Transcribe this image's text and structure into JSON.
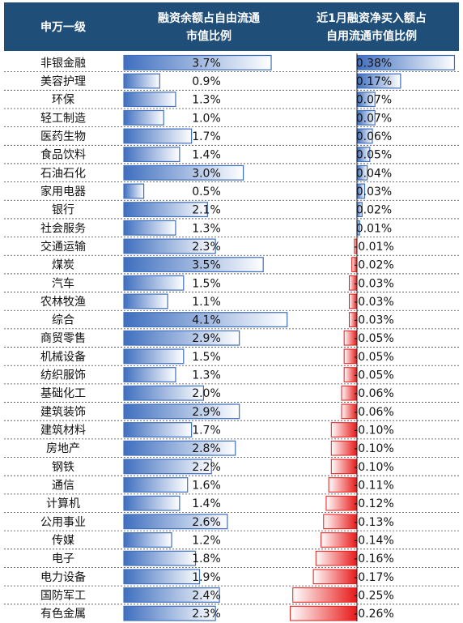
{
  "chart_data": {
    "type": "table",
    "columns": [
      "申万一级",
      "融资余额占自由流通\n市值比例",
      "近1月融资净买入额占\n自用流通市值比例"
    ],
    "ratio_unit": "%",
    "net_unit": "%",
    "rows": [
      {
        "industry": "非银金融",
        "ratio": 3.7,
        "net": 0.38,
        "ratio_label": "3.7%",
        "net_label": "0.38%"
      },
      {
        "industry": "美容护理",
        "ratio": 0.9,
        "net": 0.17,
        "ratio_label": "0.9%",
        "net_label": "0.17%"
      },
      {
        "industry": "环保",
        "ratio": 1.3,
        "net": 0.07,
        "ratio_label": "1.3%",
        "net_label": "0.07%"
      },
      {
        "industry": "轻工制造",
        "ratio": 1.0,
        "net": 0.07,
        "ratio_label": "1.0%",
        "net_label": "0.07%"
      },
      {
        "industry": "医药生物",
        "ratio": 1.7,
        "net": 0.06,
        "ratio_label": "1.7%",
        "net_label": "0.06%"
      },
      {
        "industry": "食品饮料",
        "ratio": 1.4,
        "net": 0.05,
        "ratio_label": "1.4%",
        "net_label": "0.05%"
      },
      {
        "industry": "石油石化",
        "ratio": 3.0,
        "net": 0.04,
        "ratio_label": "3.0%",
        "net_label": "0.04%"
      },
      {
        "industry": "家用电器",
        "ratio": 0.5,
        "net": 0.03,
        "ratio_label": "0.5%",
        "net_label": "0.03%"
      },
      {
        "industry": "银行",
        "ratio": 2.1,
        "net": 0.02,
        "ratio_label": "2.1%",
        "net_label": "0.02%"
      },
      {
        "industry": "社会服务",
        "ratio": 1.3,
        "net": 0.01,
        "ratio_label": "1.3%",
        "net_label": "0.01%"
      },
      {
        "industry": "交通运输",
        "ratio": 2.3,
        "net": -0.01,
        "ratio_label": "2.3%",
        "net_label": "-0.01%"
      },
      {
        "industry": "煤炭",
        "ratio": 3.5,
        "net": -0.02,
        "ratio_label": "3.5%",
        "net_label": "-0.02%"
      },
      {
        "industry": "汽车",
        "ratio": 1.5,
        "net": -0.03,
        "ratio_label": "1.5%",
        "net_label": "-0.03%"
      },
      {
        "industry": "农林牧渔",
        "ratio": 1.1,
        "net": -0.03,
        "ratio_label": "1.1%",
        "net_label": "-0.03%"
      },
      {
        "industry": "综合",
        "ratio": 4.1,
        "net": -0.03,
        "ratio_label": "4.1%",
        "net_label": "-0.03%"
      },
      {
        "industry": "商贸零售",
        "ratio": 2.9,
        "net": -0.05,
        "ratio_label": "2.9%",
        "net_label": "-0.05%"
      },
      {
        "industry": "机械设备",
        "ratio": 1.5,
        "net": -0.05,
        "ratio_label": "1.5%",
        "net_label": "-0.05%"
      },
      {
        "industry": "纺织服饰",
        "ratio": 1.3,
        "net": -0.05,
        "ratio_label": "1.3%",
        "net_label": "-0.05%"
      },
      {
        "industry": "基础化工",
        "ratio": 2.0,
        "net": -0.06,
        "ratio_label": "2.0%",
        "net_label": "-0.06%"
      },
      {
        "industry": "建筑装饰",
        "ratio": 2.9,
        "net": -0.06,
        "ratio_label": "2.9%",
        "net_label": "-0.06%"
      },
      {
        "industry": "建筑材料",
        "ratio": 1.7,
        "net": -0.1,
        "ratio_label": "1.7%",
        "net_label": "-0.10%"
      },
      {
        "industry": "房地产",
        "ratio": 2.8,
        "net": -0.1,
        "ratio_label": "2.8%",
        "net_label": "-0.10%"
      },
      {
        "industry": "钢铁",
        "ratio": 2.2,
        "net": -0.1,
        "ratio_label": "2.2%",
        "net_label": "-0.10%"
      },
      {
        "industry": "通信",
        "ratio": 1.6,
        "net": -0.11,
        "ratio_label": "1.6%",
        "net_label": "-0.11%"
      },
      {
        "industry": "计算机",
        "ratio": 1.4,
        "net": -0.12,
        "ratio_label": "1.4%",
        "net_label": "-0.12%"
      },
      {
        "industry": "公用事业",
        "ratio": 2.6,
        "net": -0.13,
        "ratio_label": "2.6%",
        "net_label": "-0.13%"
      },
      {
        "industry": "传媒",
        "ratio": 1.2,
        "net": -0.14,
        "ratio_label": "1.2%",
        "net_label": "-0.14%"
      },
      {
        "industry": "电子",
        "ratio": 1.8,
        "net": -0.16,
        "ratio_label": "1.8%",
        "net_label": "-0.16%"
      },
      {
        "industry": "电力设备",
        "ratio": 1.9,
        "net": -0.17,
        "ratio_label": "1.9%",
        "net_label": "-0.17%"
      },
      {
        "industry": "国防军工",
        "ratio": 2.4,
        "net": -0.25,
        "ratio_label": "2.4%",
        "net_label": "-0.25%"
      },
      {
        "industry": "有色金属",
        "ratio": 2.3,
        "net": -0.26,
        "ratio_label": "2.3%",
        "net_label": "-0.26%"
      }
    ],
    "colors": {
      "header_bg": "#1f4e79",
      "positive_bar": "#4a78c4",
      "negative_bar": "#e81818",
      "row_divider": "#444444"
    }
  }
}
